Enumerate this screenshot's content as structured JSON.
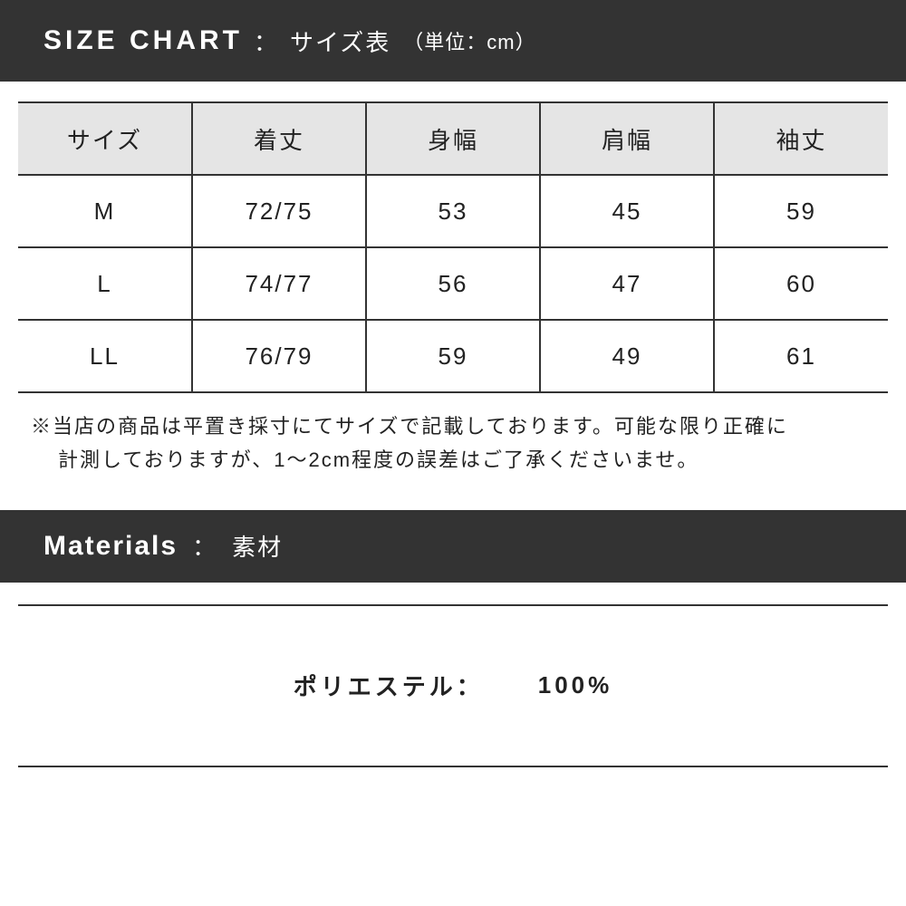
{
  "colors": {
    "header_bg": "#333333",
    "header_fg": "#ffffff",
    "table_header_bg": "#e5e5e5",
    "border": "#333333",
    "text": "#222222"
  },
  "size_chart": {
    "title_en": "SIZE CHART",
    "separator": "：",
    "title_jp": "サイズ表",
    "unit": "（単位：cm）",
    "columns": [
      "サイズ",
      "着丈",
      "身幅",
      "肩幅",
      "袖丈"
    ],
    "rows": [
      [
        "M",
        "72/75",
        "53",
        "45",
        "59"
      ],
      [
        "L",
        "74/77",
        "56",
        "47",
        "60"
      ],
      [
        "LL",
        "76/79",
        "59",
        "49",
        "61"
      ]
    ],
    "note_line1": "※当店の商品は平置き採寸にてサイズで記載しております。可能な限り正確に",
    "note_line2": "計測しておりますが、1～2cm程度の誤差はご了承くださいませ。"
  },
  "materials": {
    "title_en": "Materials",
    "separator": "：",
    "title_jp": "素材",
    "label": "ポリエステル：",
    "value": "100%"
  }
}
